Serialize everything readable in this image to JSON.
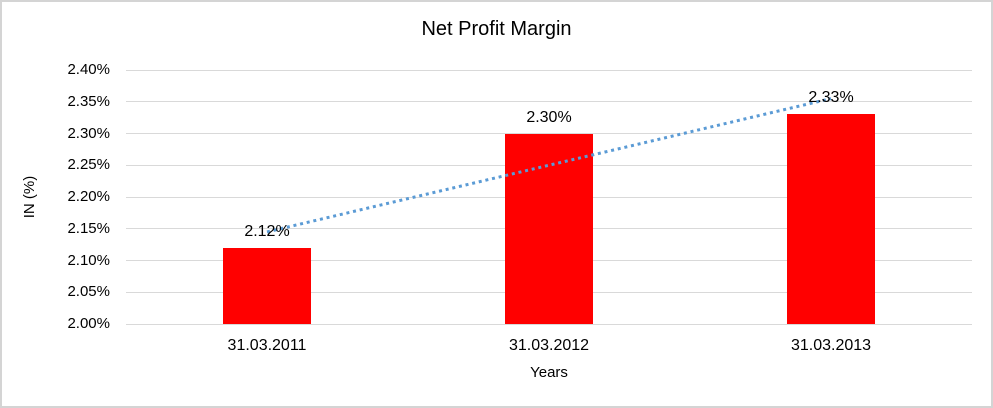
{
  "chart_data": {
    "type": "bar",
    "title": "Net Profit Margin",
    "xlabel": "Years",
    "ylabel": "IN (%)",
    "categories": [
      "31.03.2011",
      "31.03.2012",
      "31.03.2013"
    ],
    "series": [
      {
        "name": "Net Profit Margin",
        "values": [
          2.12,
          2.3,
          2.33
        ],
        "data_labels": [
          "2.12%",
          "2.30%",
          "2.33%"
        ],
        "color": "#ff0000"
      }
    ],
    "ylim": [
      2.0,
      2.4
    ],
    "ytick_step": 0.05,
    "ytick_labels": [
      "2.00%",
      "2.05%",
      "2.10%",
      "2.15%",
      "2.20%",
      "2.25%",
      "2.30%",
      "2.35%",
      "2.40%"
    ],
    "grid": true,
    "gridline_color": "#d9d9d9",
    "legend_position": "none",
    "trendline": {
      "type": "linear",
      "style": "dotted",
      "color": "#5b9bd5",
      "fit_values": [
        2.145,
        2.25,
        2.355
      ]
    }
  }
}
